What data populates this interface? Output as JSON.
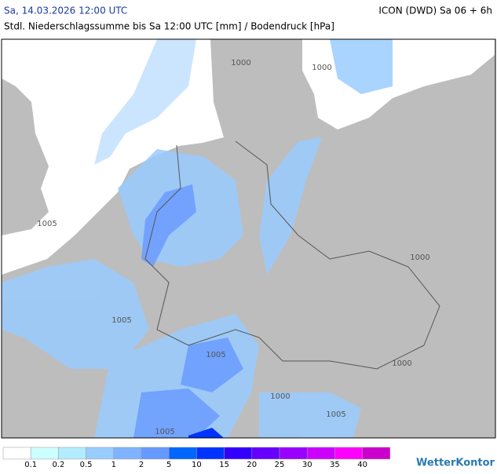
{
  "header": {
    "left": "Sa, 14.03.2026 12:00 UTC",
    "right": "ICON (DWD) Sa 06 + 6h",
    "subtitle": "Stdl. Niederschlagssumme bis Sa 12:00 UTC [mm] / Bodendruck [hPa]"
  },
  "map": {
    "isobar_labels": [
      "1000",
      "1000",
      "1005",
      "1005",
      "1000",
      "1005",
      "1000",
      "1000",
      "1005",
      "1005"
    ]
  },
  "legend": {
    "labels": [
      "0.1",
      "0.2",
      "0.5",
      "1",
      "2",
      "5",
      "10",
      "15",
      "20",
      "25",
      "30",
      "35",
      "40"
    ],
    "colors": [
      "#ffffff",
      "#ccffff",
      "#b3ecff",
      "#99ccff",
      "#80b3ff",
      "#6699ff",
      "#0066ff",
      "#0033ff",
      "#3300ff",
      "#6600ff",
      "#9900ff",
      "#cc00ff",
      "#ff00ff",
      "#cc00cc"
    ]
  },
  "brand": "WetterKontor"
}
